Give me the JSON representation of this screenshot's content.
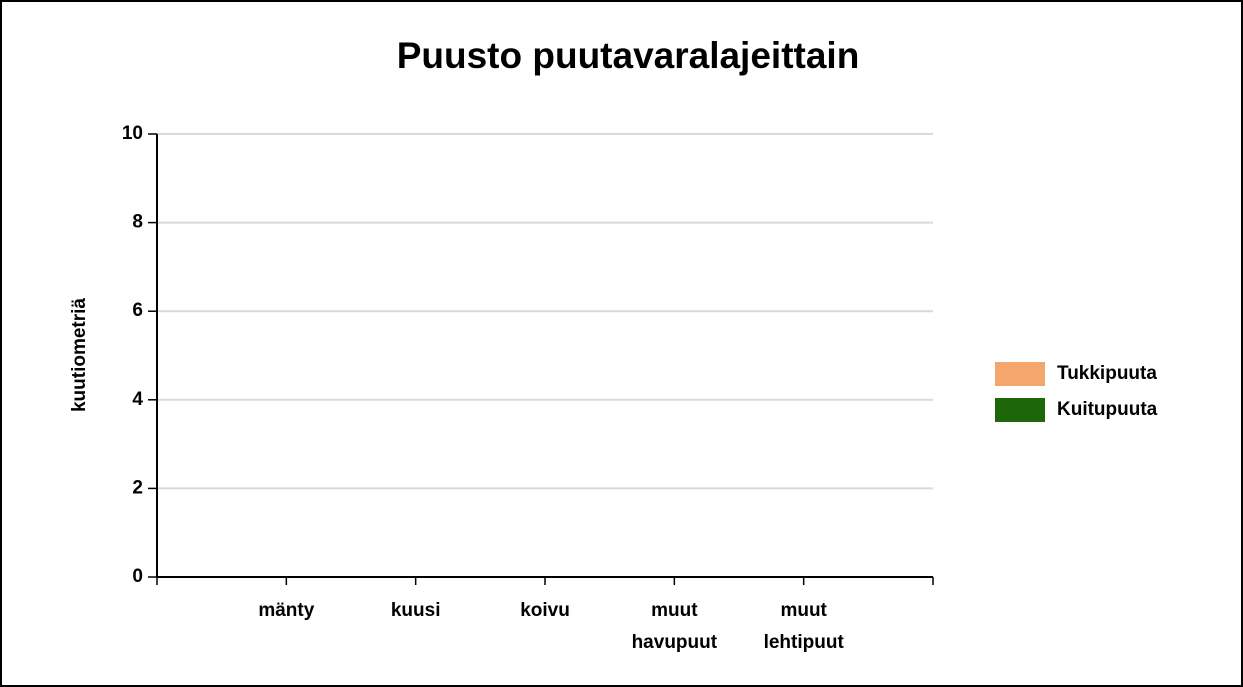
{
  "chart_data": {
    "type": "bar",
    "stacked": true,
    "title": "Puusto puutavaralajeittain",
    "y_label": "kuutiometriä",
    "categories": [
      "mänty",
      "kuusi",
      "koivu",
      "muut havupuut",
      "muut lehtipuut"
    ],
    "series": [
      {
        "name": "Tukkipuuta",
        "color": "#f5a66a",
        "values": [
          0,
          0,
          0,
          0,
          0
        ]
      },
      {
        "name": "Kuitupuuta",
        "color": "#1e660a",
        "values": [
          0,
          0,
          0,
          0,
          0
        ]
      }
    ],
    "ylim": [
      0,
      10
    ],
    "yticks": [
      0,
      2,
      4,
      6,
      8,
      10
    ],
    "grid": true,
    "legend": "right"
  }
}
